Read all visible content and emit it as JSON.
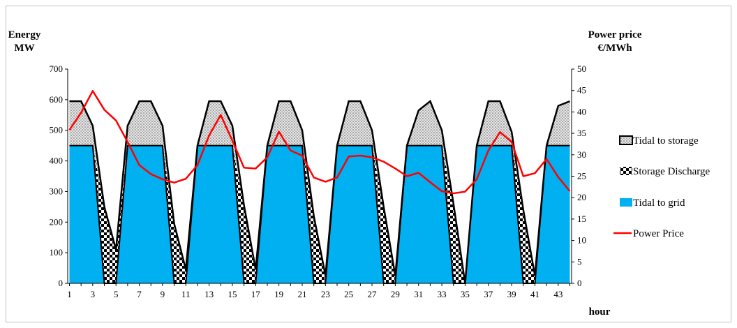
{
  "chart_data": {
    "type": "area",
    "ylabel_left": [
      "Energy",
      "MW"
    ],
    "ylabel_right": [
      "Power price",
      "€/MWh"
    ],
    "xlabel": "hour",
    "ylim_left": [
      0,
      700
    ],
    "yticks_left": [
      "0",
      "100",
      "200",
      "300",
      "400",
      "500",
      "600",
      "700"
    ],
    "ylim_right": [
      0,
      50
    ],
    "yticks_right": [
      "0",
      "5",
      "10",
      "15",
      "20",
      "25",
      "30",
      "35",
      "40",
      "45",
      "50"
    ],
    "x_range": [
      1,
      44
    ],
    "xticks": [
      "1",
      "3",
      "5",
      "7",
      "9",
      "11",
      "13",
      "15",
      "17",
      "19",
      "21",
      "23",
      "25",
      "27",
      "29",
      "31",
      "33",
      "35",
      "37",
      "39",
      "41",
      "43"
    ],
    "x": [
      1,
      2,
      3,
      4,
      5,
      6,
      7,
      8,
      9,
      10,
      11,
      12,
      13,
      14,
      15,
      16,
      17,
      18,
      19,
      20,
      21,
      22,
      23,
      24,
      25,
      26,
      27,
      28,
      29,
      30,
      31,
      32,
      33,
      34,
      35,
      36,
      37,
      38,
      39,
      40,
      41,
      42,
      43,
      44
    ],
    "series": [
      {
        "name": "Tidal to storage",
        "values": [
          145,
          145,
          65,
          0,
          0,
          65,
          145,
          145,
          65,
          0,
          0,
          0,
          145,
          145,
          65,
          0,
          0,
          0,
          145,
          145,
          50,
          0,
          0,
          0,
          145,
          145,
          50,
          0,
          0,
          0,
          115,
          145,
          50,
          0,
          0,
          0,
          145,
          145,
          45,
          0,
          0,
          0,
          130,
          145
        ]
      },
      {
        "name": "Storage Discharge",
        "values": [
          0,
          0,
          0,
          250,
          110,
          0,
          0,
          0,
          0,
          195,
          45,
          0,
          0,
          0,
          0,
          255,
          45,
          0,
          0,
          0,
          0,
          220,
          25,
          0,
          0,
          0,
          0,
          250,
          25,
          0,
          0,
          0,
          0,
          260,
          0,
          0,
          0,
          0,
          0,
          240,
          25,
          0,
          0,
          0
        ]
      },
      {
        "name": "Tidal to grid",
        "values": [
          450,
          450,
          450,
          0,
          0,
          450,
          450,
          450,
          450,
          0,
          0,
          450,
          450,
          450,
          450,
          0,
          0,
          450,
          450,
          450,
          450,
          0,
          0,
          450,
          450,
          450,
          450,
          0,
          0,
          450,
          450,
          450,
          450,
          0,
          0,
          450,
          450,
          450,
          450,
          0,
          0,
          450,
          450,
          450
        ]
      },
      {
        "name": "Power Price",
        "values": [
          35.8,
          39.8,
          44.9,
          40.5,
          38,
          33,
          27.6,
          25.5,
          24.3,
          23.5,
          24.4,
          27.6,
          34.5,
          39.3,
          33.3,
          27,
          26.8,
          29.4,
          35.4,
          31,
          29.8,
          24.7,
          23.7,
          24.7,
          29.6,
          29.8,
          29.4,
          28.4,
          26.8,
          25,
          25.8,
          23.6,
          21.5,
          21,
          21.4,
          24.3,
          31,
          35.3,
          33,
          25,
          25.7,
          29,
          24.8,
          21.5
        ]
      }
    ],
    "colors": {
      "tidal_to_storage": "#d4d4d4",
      "storage_discharge": "#000000",
      "tidal_to_grid": "#00b0f0",
      "power_price": "#ff0000",
      "outline": "#000000"
    },
    "legend_placement": "right",
    "grid": false
  }
}
